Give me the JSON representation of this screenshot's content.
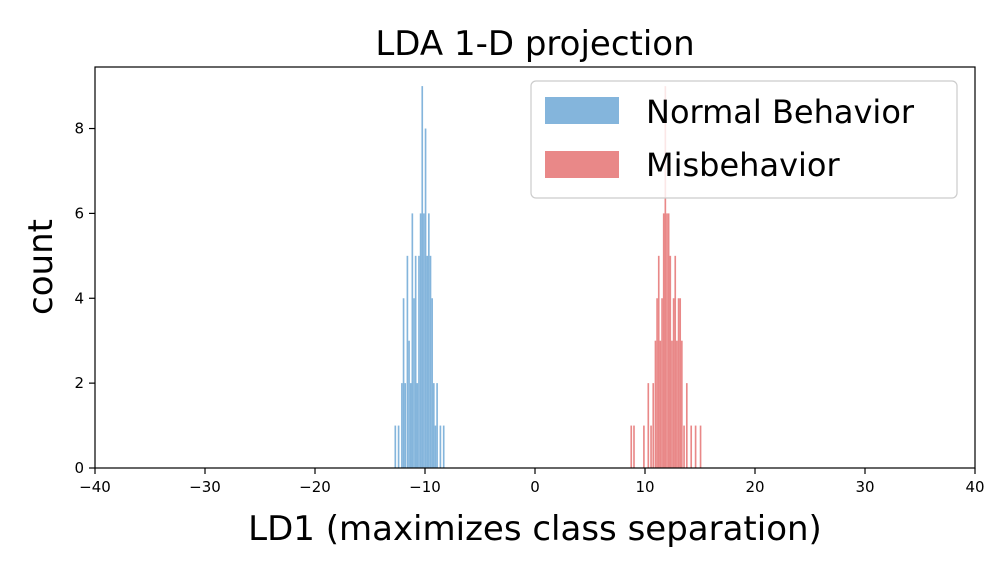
{
  "chart_data": {
    "type": "histogram",
    "title": "LDA 1-D projection",
    "xlabel": "LD1 (maximizes class separation)",
    "ylabel": "count",
    "xlim": [
      -40,
      40
    ],
    "ylim": [
      0,
      9.45
    ],
    "xticks": [
      -40,
      -30,
      -20,
      -10,
      0,
      10,
      20,
      30,
      40
    ],
    "xtick_labels": [
      "−40",
      "−30",
      "−20",
      "−10",
      "0",
      "10",
      "20",
      "30",
      "40"
    ],
    "yticks": [
      0,
      2,
      4,
      6,
      8
    ],
    "ytick_labels": [
      "0",
      "2",
      "4",
      "6",
      "8"
    ],
    "grid": false,
    "legend_position": "top-right",
    "series": [
      {
        "name": "Normal Behavior",
        "color": "#6fa8d6",
        "opacity": 0.85,
        "bins": [
          {
            "x": -12.7,
            "count": 1
          },
          {
            "x": -12.4,
            "count": 1
          },
          {
            "x": -12.1,
            "count": 2
          },
          {
            "x": -11.95,
            "count": 4
          },
          {
            "x": -11.8,
            "count": 2
          },
          {
            "x": -11.6,
            "count": 5
          },
          {
            "x": -11.45,
            "count": 3
          },
          {
            "x": -11.3,
            "count": 2
          },
          {
            "x": -11.15,
            "count": 6
          },
          {
            "x": -11.0,
            "count": 4
          },
          {
            "x": -10.85,
            "count": 5
          },
          {
            "x": -10.7,
            "count": 2
          },
          {
            "x": -10.55,
            "count": 5
          },
          {
            "x": -10.4,
            "count": 6
          },
          {
            "x": -10.25,
            "count": 9
          },
          {
            "x": -10.1,
            "count": 6
          },
          {
            "x": -9.95,
            "count": 8
          },
          {
            "x": -9.8,
            "count": 5
          },
          {
            "x": -9.65,
            "count": 6
          },
          {
            "x": -9.5,
            "count": 5
          },
          {
            "x": -9.35,
            "count": 4
          },
          {
            "x": -9.2,
            "count": 2
          },
          {
            "x": -9.05,
            "count": 1
          },
          {
            "x": -8.9,
            "count": 2
          },
          {
            "x": -8.6,
            "count": 1
          },
          {
            "x": -8.3,
            "count": 1
          }
        ]
      },
      {
        "name": "Misbehavior",
        "color": "#e57373",
        "opacity": 0.85,
        "bins": [
          {
            "x": 8.75,
            "count": 1
          },
          {
            "x": 9.0,
            "count": 1
          },
          {
            "x": 9.9,
            "count": 1
          },
          {
            "x": 10.3,
            "count": 2
          },
          {
            "x": 10.55,
            "count": 1
          },
          {
            "x": 10.75,
            "count": 2
          },
          {
            "x": 10.95,
            "count": 3
          },
          {
            "x": 11.1,
            "count": 4
          },
          {
            "x": 11.25,
            "count": 5
          },
          {
            "x": 11.4,
            "count": 3
          },
          {
            "x": 11.55,
            "count": 4
          },
          {
            "x": 11.7,
            "count": 6
          },
          {
            "x": 11.85,
            "count": 9
          },
          {
            "x": 12.0,
            "count": 6
          },
          {
            "x": 12.15,
            "count": 6
          },
          {
            "x": 12.3,
            "count": 5
          },
          {
            "x": 12.45,
            "count": 3
          },
          {
            "x": 12.6,
            "count": 4
          },
          {
            "x": 12.75,
            "count": 5
          },
          {
            "x": 12.9,
            "count": 3
          },
          {
            "x": 13.05,
            "count": 4
          },
          {
            "x": 13.2,
            "count": 4
          },
          {
            "x": 13.35,
            "count": 3
          },
          {
            "x": 13.55,
            "count": 1
          },
          {
            "x": 13.8,
            "count": 2
          },
          {
            "x": 14.2,
            "count": 1
          },
          {
            "x": 14.6,
            "count": 1
          },
          {
            "x": 15.05,
            "count": 1
          }
        ]
      }
    ]
  }
}
